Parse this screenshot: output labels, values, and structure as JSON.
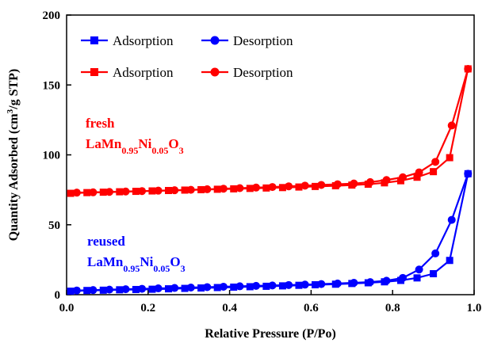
{
  "chart_data": {
    "type": "line",
    "title": "",
    "xlabel": "Relative Pressure (P/Po)",
    "ylabel": "Quantity Adsorbed (cm³/g STP)",
    "xlim": [
      0.0,
      1.0
    ],
    "ylim": [
      0,
      200
    ],
    "xticks": [
      "0.0",
      "0.2",
      "0.4",
      "0.6",
      "0.8",
      "1.0"
    ],
    "yticks": [
      "0",
      "50",
      "100",
      "150",
      "200"
    ],
    "legend": {
      "placement": "top-left"
    },
    "series": [
      {
        "name": "Adsorption",
        "group": "reused",
        "color": "#0000ff",
        "marker": "square",
        "x": [
          0.01,
          0.05,
          0.09,
          0.13,
          0.17,
          0.21,
          0.25,
          0.29,
          0.33,
          0.37,
          0.41,
          0.45,
          0.49,
          0.53,
          0.57,
          0.61,
          0.66,
          0.7,
          0.74,
          0.78,
          0.82,
          0.86,
          0.9,
          0.94,
          0.985
        ],
        "y": [
          2.5,
          3.0,
          3.2,
          3.5,
          3.7,
          3.9,
          4.2,
          4.5,
          4.8,
          5.1,
          5.4,
          5.7,
          6.0,
          6.3,
          6.7,
          7.1,
          7.5,
          8.0,
          8.5,
          9.2,
          10.2,
          12.0,
          15.0,
          24.5,
          86.5
        ]
      },
      {
        "name": "Desorption",
        "group": "reused",
        "color": "#0000ff",
        "marker": "circle",
        "x": [
          0.985,
          0.945,
          0.905,
          0.865,
          0.825,
          0.785,
          0.745,
          0.705,
          0.665,
          0.625,
          0.585,
          0.545,
          0.505,
          0.465,
          0.425,
          0.385,
          0.345,
          0.305,
          0.265,
          0.225,
          0.185,
          0.145,
          0.105,
          0.065,
          0.025
        ],
        "y": [
          86.5,
          53.5,
          29.5,
          18.0,
          12.0,
          10.0,
          9.0,
          8.5,
          8.0,
          7.6,
          7.2,
          6.9,
          6.6,
          6.3,
          6.0,
          5.7,
          5.4,
          5.1,
          4.8,
          4.5,
          4.2,
          3.9,
          3.6,
          3.3,
          3.0
        ]
      },
      {
        "name": "Adsorption",
        "group": "fresh",
        "color": "#ff0000",
        "marker": "square",
        "x": [
          0.01,
          0.05,
          0.09,
          0.13,
          0.17,
          0.21,
          0.25,
          0.29,
          0.33,
          0.37,
          0.41,
          0.45,
          0.49,
          0.53,
          0.57,
          0.61,
          0.66,
          0.7,
          0.74,
          0.78,
          0.82,
          0.86,
          0.9,
          0.94,
          0.985
        ],
        "y": [
          72.5,
          73.0,
          73.3,
          73.6,
          73.9,
          74.2,
          74.5,
          74.8,
          75.1,
          75.4,
          75.7,
          76.0,
          76.3,
          76.6,
          77.0,
          77.4,
          77.9,
          78.4,
          79.0,
          80.0,
          81.5,
          84.0,
          88.0,
          98.0,
          161.5
        ]
      },
      {
        "name": "Desorption",
        "group": "fresh",
        "color": "#ff0000",
        "marker": "circle",
        "x": [
          0.985,
          0.945,
          0.905,
          0.865,
          0.825,
          0.785,
          0.745,
          0.705,
          0.665,
          0.625,
          0.585,
          0.545,
          0.505,
          0.465,
          0.425,
          0.385,
          0.345,
          0.305,
          0.265,
          0.225,
          0.185,
          0.145,
          0.105,
          0.065,
          0.025
        ],
        "y": [
          161.5,
          121.0,
          95.0,
          87.5,
          84.0,
          82.0,
          80.5,
          79.5,
          79.0,
          78.5,
          78.0,
          77.5,
          77.0,
          76.6,
          76.2,
          75.8,
          75.4,
          75.0,
          74.7,
          74.4,
          74.1,
          73.8,
          73.5,
          73.2,
          73.0
        ]
      }
    ],
    "annotations": [
      {
        "id": "fresh",
        "color": "#ff0000",
        "line1": "fresh",
        "formula": [
          "LaMn",
          "0.95",
          "Ni",
          "0.05",
          "O",
          "3"
        ]
      },
      {
        "id": "reused",
        "color": "#0000ff",
        "line1": "reused",
        "formula": [
          "LaMn",
          "0.95",
          "Ni",
          "0.05",
          "O",
          "3"
        ]
      }
    ]
  }
}
